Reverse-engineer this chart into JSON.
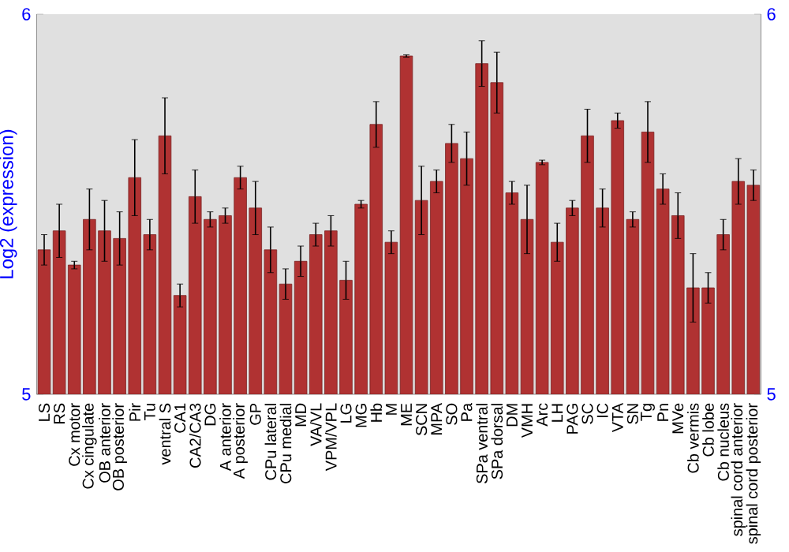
{
  "chart_data": {
    "type": "bar",
    "ylabel": "Log2 (expression)",
    "categories": [
      "LS",
      "RS",
      "Cx motor",
      "Cx cingulate",
      "OB anterior",
      "OB posterior",
      "Pir",
      "Tu",
      "ventral S",
      "CA1",
      "CA2/CA3",
      "DG",
      "A anterior",
      "A posterior",
      "GP",
      "CPu lateral",
      "CPu medial",
      "MD",
      "VA/VL",
      "VPM/VPL",
      "LG",
      "MG",
      "Hb",
      "M",
      "ME",
      "SCN",
      "MPA",
      "SO",
      "Pa",
      "SPa ventral",
      "SPa dorsal",
      "DM",
      "VMH",
      "Arc",
      "LH",
      "PAG",
      "SC",
      "IC",
      "VTA",
      "SN",
      "Tg",
      "Pn",
      "MVe",
      "Cb vermis",
      "Cb lobe",
      "Cb nucleus",
      "spinal cord anterior",
      "spinal cord posterior"
    ],
    "values": [
      5.38,
      5.43,
      5.34,
      5.46,
      5.43,
      5.41,
      5.57,
      5.42,
      5.68,
      5.26,
      5.52,
      5.46,
      5.47,
      5.57,
      5.49,
      5.38,
      5.29,
      5.35,
      5.42,
      5.43,
      5.3,
      5.5,
      5.71,
      5.4,
      5.89,
      5.51,
      5.56,
      5.66,
      5.62,
      5.87,
      5.82,
      5.53,
      5.46,
      5.61,
      5.4,
      5.49,
      5.68,
      5.49,
      5.72,
      5.46,
      5.69,
      5.54,
      5.47,
      5.28,
      5.28,
      5.42,
      5.56,
      5.55
    ],
    "errors": [
      0.04,
      0.07,
      0.01,
      0.08,
      0.08,
      0.07,
      0.1,
      0.04,
      0.1,
      0.03,
      0.07,
      0.02,
      0.02,
      0.03,
      0.07,
      0.06,
      0.04,
      0.04,
      0.03,
      0.04,
      0.05,
      0.01,
      0.06,
      0.03,
      0.003,
      0.09,
      0.03,
      0.05,
      0.07,
      0.06,
      0.08,
      0.03,
      0.09,
      0.006,
      0.05,
      0.02,
      0.07,
      0.05,
      0.02,
      0.02,
      0.08,
      0.04,
      0.06,
      0.09,
      0.04,
      0.04,
      0.06,
      0.04
    ],
    "color": "#b03232",
    "ylim": [
      5,
      6
    ],
    "yticks": [
      5,
      6
    ],
    "y2lim": [
      5,
      6
    ],
    "y2ticks": [
      5,
      6
    ]
  }
}
